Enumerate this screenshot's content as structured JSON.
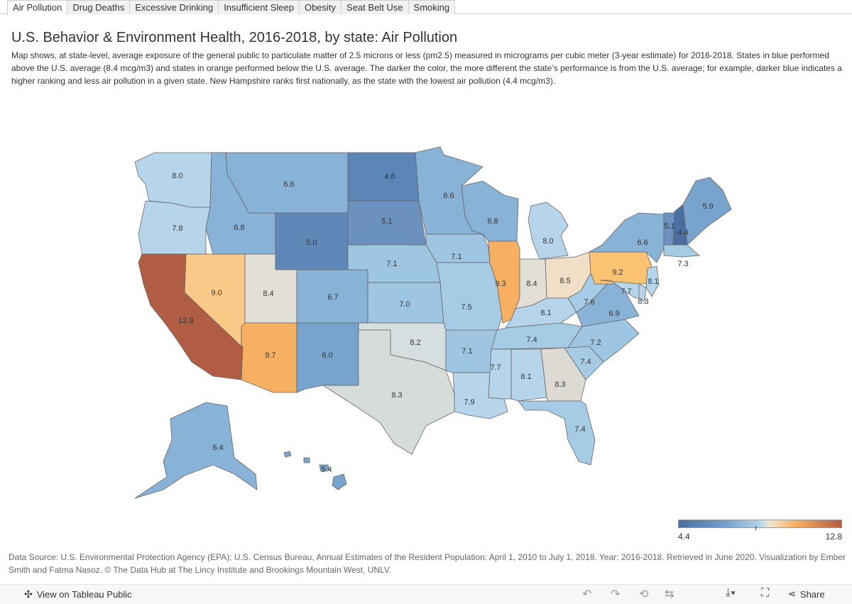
{
  "tabs": [
    "Air Pollution",
    "Drug Deaths",
    "Excessive Drinking",
    "Insufficient Sleep",
    "Obesity",
    "Seat Belt Use",
    "Smoking"
  ],
  "active_tab": "Air Pollution",
  "title": "U.S. Behavior & Environment Health, 2016-2018, by state: Air Pollution",
  "description": "Map shows, at state-level, average exposure of the general public to particulate matter of 2.5 microns or less (pm2.5) measured in micrograms per cubic meter (3-year estimate) for 2016-2018. States in blue performed above the U.S. average (8.4 mcg/m3) and states in orange performed below the U.S. average. The darker the color, the more different the state’s performance is from the U.S. average; for example, darker blue indicates a higher ranking and less air pollution in a given state. New Hampshire ranks first nationally, as the state with the lowest air pollution (4.4 mcg/m3).",
  "legend": {
    "min": "4.4",
    "max": "12.8"
  },
  "colors": {
    "low": "#4a6fa0",
    "mid_low": "#b6d5ea",
    "mid": "#e2dfd6",
    "mid_high": "#f7b062",
    "high": "#b15d44"
  },
  "states": [
    {
      "id": "WA",
      "value": "8.0"
    },
    {
      "id": "OR",
      "value": "7.8"
    },
    {
      "id": "CA",
      "value": "12.8"
    },
    {
      "id": "NV",
      "value": "9.0"
    },
    {
      "id": "ID",
      "value": "6.8"
    },
    {
      "id": "MT",
      "value": "6.6"
    },
    {
      "id": "WY",
      "value": "5.0"
    },
    {
      "id": "UT",
      "value": "8.4"
    },
    {
      "id": "AZ",
      "value": "9.7"
    },
    {
      "id": "CO",
      "value": "6.7"
    },
    {
      "id": "NM",
      "value": "6.0"
    },
    {
      "id": "ND",
      "value": "4.6"
    },
    {
      "id": "SD",
      "value": "5.1"
    },
    {
      "id": "NE",
      "value": "7.1"
    },
    {
      "id": "KS",
      "value": "7.0"
    },
    {
      "id": "OK",
      "value": "8.2"
    },
    {
      "id": "TX",
      "value": "8.3"
    },
    {
      "id": "MN",
      "value": "6.6"
    },
    {
      "id": "IA",
      "value": "7.1"
    },
    {
      "id": "MO",
      "value": "7.5"
    },
    {
      "id": "AR",
      "value": "7.1"
    },
    {
      "id": "LA",
      "value": "7.9"
    },
    {
      "id": "WI",
      "value": "6.8"
    },
    {
      "id": "IL",
      "value": "9.3"
    },
    {
      "id": "MI",
      "value": "8.0"
    },
    {
      "id": "IN",
      "value": "8.4"
    },
    {
      "id": "OH",
      "value": "8.5"
    },
    {
      "id": "KY",
      "value": "8.1"
    },
    {
      "id": "TN",
      "value": "7.4"
    },
    {
      "id": "MS",
      "value": "7.7"
    },
    {
      "id": "AL",
      "value": "8.1"
    },
    {
      "id": "GA",
      "value": "8.3"
    },
    {
      "id": "FL",
      "value": "7.4"
    },
    {
      "id": "SC",
      "value": "7.4"
    },
    {
      "id": "NC",
      "value": "7.2"
    },
    {
      "id": "VA",
      "value": "6.9"
    },
    {
      "id": "WV",
      "value": "7.6"
    },
    {
      "id": "PA",
      "value": "9.2"
    },
    {
      "id": "NY",
      "value": "6.6"
    },
    {
      "id": "VT",
      "value": "5.1"
    },
    {
      "id": "NH",
      "value": "4.4"
    },
    {
      "id": "ME",
      "value": "5.9"
    },
    {
      "id": "MA",
      "value": "7.3"
    },
    {
      "id": "NJ",
      "value": "8.1"
    },
    {
      "id": "DE",
      "value": "8.3"
    },
    {
      "id": "MD",
      "value": "7.7"
    },
    {
      "id": "AK",
      "value": "6.4"
    },
    {
      "id": "HI",
      "value": "5.4"
    }
  ],
  "source": "Data Source: U.S. Environmental Protection Agency (EPA); U.S. Census Bureau, Annual Estimates of the Resident Population: April 1, 2010 to July 1, 2018. Year: 2016-2018. Retrieved in June 2020. Visualization by Ember Smith and Fatma Nasoz. © The Data Hub at The Lincy Institute and Brookings Mountain West, UNLV.",
  "footer": {
    "view_label": "View on Tableau Public",
    "share_label": "Share"
  }
}
